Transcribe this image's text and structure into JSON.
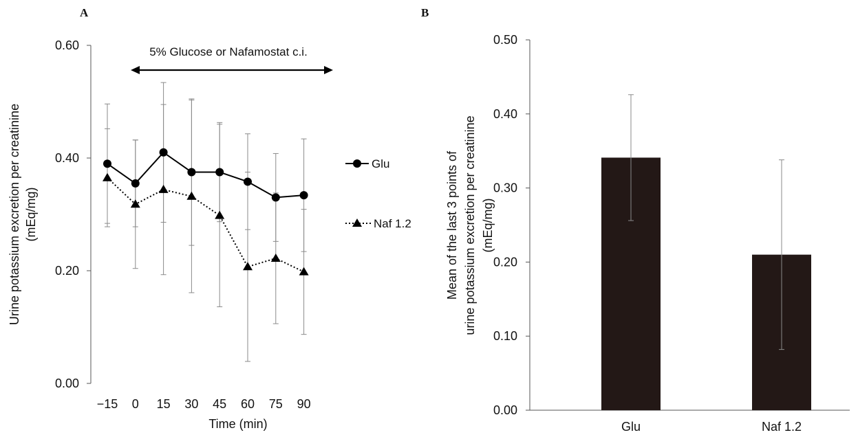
{
  "chart_data": [
    {
      "panel": "A",
      "type": "line",
      "title": "",
      "xlabel": "Time (min)",
      "ylabel_lines": [
        "Urine potassium excretion per creatinine",
        "(mEq/mg)"
      ],
      "ylim": [
        0,
        0.6
      ],
      "yticks": [
        "0.00",
        "0.20",
        "0.40",
        "0.60"
      ],
      "ytick_values": [
        0,
        0.2,
        0.4,
        0.6
      ],
      "categories": [
        "-15",
        "0",
        "15",
        "30",
        "45",
        "60",
        "75",
        "90"
      ],
      "annotation": "5% Glucose or Nafamostat c.i.",
      "annotation_span": [
        "0",
        "90"
      ],
      "series": [
        {
          "name": "Glu",
          "marker": "circle",
          "line": "solid",
          "values": [
            0.39,
            0.355,
            0.41,
            0.375,
            0.375,
            0.358,
            0.33,
            0.334
          ],
          "error": [
            0.106,
            0.077,
            0.124,
            0.13,
            0.088,
            0.085,
            0.078,
            0.1
          ]
        },
        {
          "name": "Naf 1.2",
          "marker": "triangle",
          "line": "dotted",
          "values": [
            0.365,
            0.318,
            0.344,
            0.332,
            0.298,
            0.207,
            0.222,
            0.198
          ],
          "error": [
            0.087,
            0.114,
            0.151,
            0.171,
            0.162,
            0.168,
            0.116,
            0.111
          ]
        }
      ],
      "legend": [
        "Glu",
        "Naf 1.2"
      ],
      "legend_position": "right",
      "grid": false
    },
    {
      "panel": "B",
      "type": "bar",
      "title": "",
      "xlabel": "",
      "ylabel_lines": [
        "Mean of the last 3 points of",
        "urine potassium excretion per creatinine",
        "(mEq/mg)"
      ],
      "ylim": [
        0,
        0.5
      ],
      "yticks": [
        "0.00",
        "0.10",
        "0.20",
        "0.30",
        "0.40",
        "0.50"
      ],
      "ytick_values": [
        0,
        0.1,
        0.2,
        0.3,
        0.4,
        0.5
      ],
      "categories": [
        "Glu",
        "Naf 1.2"
      ],
      "values": [
        0.341,
        0.21
      ],
      "error": [
        0.085,
        0.128
      ],
      "bar_color": "#231816",
      "grid": false
    }
  ]
}
